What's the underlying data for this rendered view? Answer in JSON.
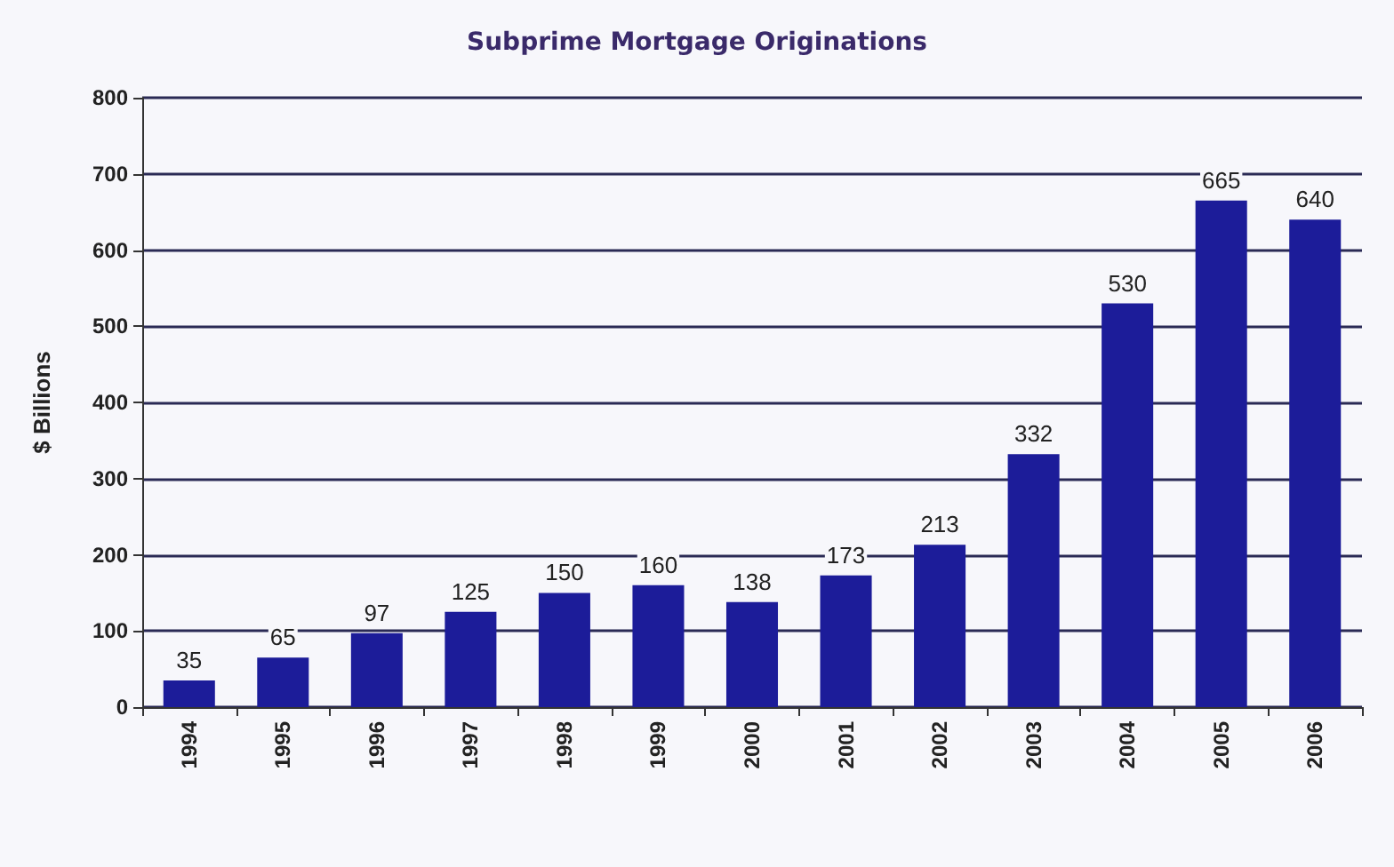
{
  "chart_data": {
    "type": "bar",
    "title": "Subprime Mortgage Originations",
    "ylabel": "$ Billions",
    "categories": [
      "1994",
      "1995",
      "1996",
      "1997",
      "1998",
      "1999",
      "2000",
      "2001",
      "2002",
      "2003",
      "2004",
      "2005",
      "2006"
    ],
    "values": [
      35,
      65,
      97,
      125,
      150,
      160,
      138,
      173,
      213,
      332,
      530,
      665,
      640
    ],
    "color": "#1c1c99",
    "ylim": [
      0,
      800
    ],
    "yticks": [
      0,
      100,
      200,
      300,
      400,
      500,
      600,
      700,
      800
    ],
    "grid": "y",
    "data_labels": true
  }
}
